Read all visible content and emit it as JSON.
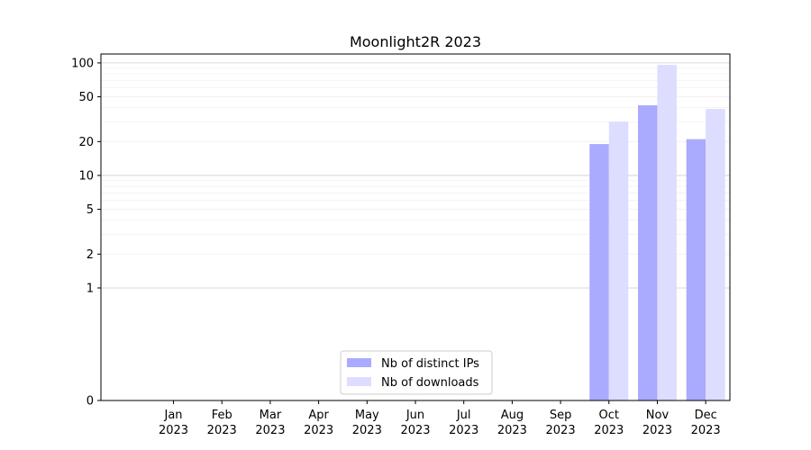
{
  "chart_data": {
    "type": "bar",
    "title": "Moonlight2R 2023",
    "xlabel": "",
    "ylabel": "",
    "yscale": "symlog",
    "ylim": [
      0,
      120
    ],
    "yticks": [
      0,
      1,
      2,
      5,
      10,
      20,
      50,
      100
    ],
    "grid": true,
    "legend_position": "bottom-center",
    "categories": [
      {
        "month": "Jan",
        "year": "2023"
      },
      {
        "month": "Feb",
        "year": "2023"
      },
      {
        "month": "Mar",
        "year": "2023"
      },
      {
        "month": "Apr",
        "year": "2023"
      },
      {
        "month": "May",
        "year": "2023"
      },
      {
        "month": "Jun",
        "year": "2023"
      },
      {
        "month": "Jul",
        "year": "2023"
      },
      {
        "month": "Aug",
        "year": "2023"
      },
      {
        "month": "Sep",
        "year": "2023"
      },
      {
        "month": "Oct",
        "year": "2023"
      },
      {
        "month": "Nov",
        "year": "2023"
      },
      {
        "month": "Dec",
        "year": "2023"
      }
    ],
    "series": [
      {
        "name": "Nb of distinct IPs",
        "color": "#aaaaff",
        "values": [
          0,
          0,
          0,
          0,
          0,
          0,
          0,
          0,
          0,
          19,
          42,
          21
        ]
      },
      {
        "name": "Nb of downloads",
        "color": "#ddddff",
        "values": [
          0,
          0,
          0,
          0,
          0,
          0,
          0,
          0,
          0,
          30,
          96,
          39
        ]
      }
    ]
  }
}
